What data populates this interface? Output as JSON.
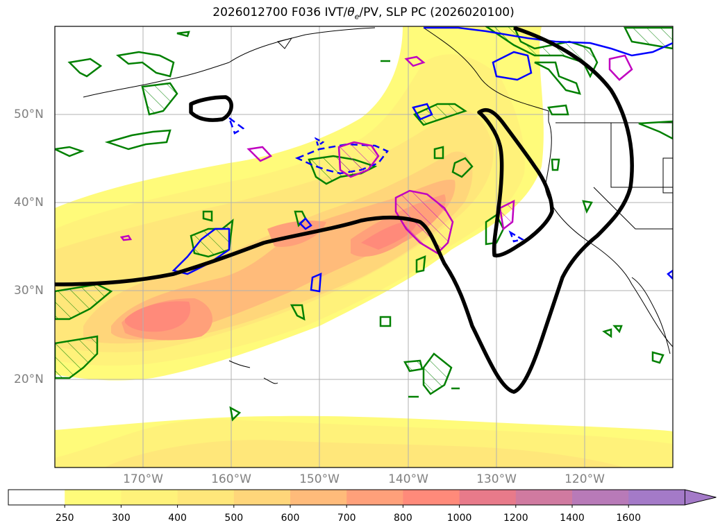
{
  "title": "2026012700 F036 IVT/",
  "title_theta": "θ",
  "title_sub": "e",
  "title_rest": "/PV, SLP PC (2026020100)",
  "lat_labels": [
    "50°N",
    "40°N",
    "30°N",
    "20°N"
  ],
  "lon_labels": [
    "170°W",
    "160°W",
    "150°W",
    "140°W",
    "130°W",
    "120°W"
  ],
  "colorbar": {
    "levels": [
      "250",
      "300",
      "400",
      "500",
      "600",
      "700",
      "800",
      "1000",
      "1200",
      "1400",
      "1600"
    ],
    "colors": [
      "#ffffff",
      "#fffb7a",
      "#fff27a",
      "#ffe77a",
      "#ffd67a",
      "#ffbb7a",
      "#ffa07a",
      "#ff8a7a",
      "#e87a8a",
      "#d07aa0",
      "#b87ab8",
      "#a47ac8"
    ],
    "extend": "max"
  },
  "contour_colors": {
    "slp": "#000000",
    "theta_e": "#0000ff",
    "pv_low": "#008000",
    "pv_high": "#c000c0"
  }
}
